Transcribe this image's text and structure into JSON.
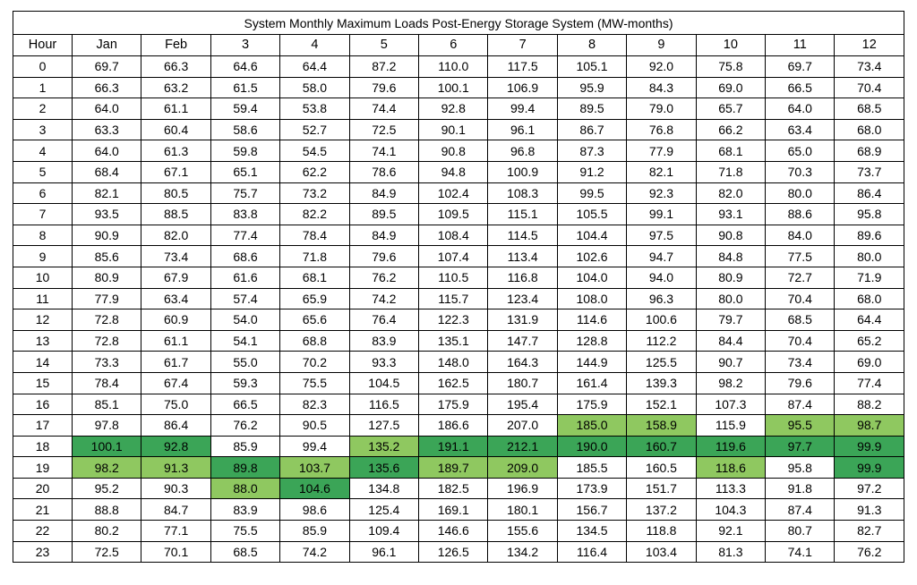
{
  "title": "System Monthly Maximum Loads Post-Energy Storage System (MW-months)",
  "colors": {
    "highlight_light": "#8fc860",
    "highlight_dark": "#3ba557",
    "border": "#000000",
    "text": "#000000",
    "background": "#ffffff"
  },
  "table": {
    "columns": [
      "Hour",
      "Jan",
      "Feb",
      "3",
      "4",
      "5",
      "6",
      "7",
      "8",
      "9",
      "10",
      "11",
      "12"
    ],
    "rows": [
      {
        "hour": "0",
        "values": [
          "69.7",
          "66.3",
          "64.6",
          "64.4",
          "87.2",
          "110.0",
          "117.5",
          "105.1",
          "92.0",
          "75.8",
          "69.7",
          "73.4"
        ]
      },
      {
        "hour": "1",
        "values": [
          "66.3",
          "63.2",
          "61.5",
          "58.0",
          "79.6",
          "100.1",
          "106.9",
          "95.9",
          "84.3",
          "69.0",
          "66.5",
          "70.4"
        ]
      },
      {
        "hour": "2",
        "values": [
          "64.0",
          "61.1",
          "59.4",
          "53.8",
          "74.4",
          "92.8",
          "99.4",
          "89.5",
          "79.0",
          "65.7",
          "64.0",
          "68.5"
        ]
      },
      {
        "hour": "3",
        "values": [
          "63.3",
          "60.4",
          "58.6",
          "52.7",
          "72.5",
          "90.1",
          "96.1",
          "86.7",
          "76.8",
          "66.2",
          "63.4",
          "68.0"
        ]
      },
      {
        "hour": "4",
        "values": [
          "64.0",
          "61.3",
          "59.8",
          "54.5",
          "74.1",
          "90.8",
          "96.8",
          "87.3",
          "77.9",
          "68.1",
          "65.0",
          "68.9"
        ]
      },
      {
        "hour": "5",
        "values": [
          "68.4",
          "67.1",
          "65.1",
          "62.2",
          "78.6",
          "94.8",
          "100.9",
          "91.2",
          "82.1",
          "71.8",
          "70.3",
          "73.7"
        ]
      },
      {
        "hour": "6",
        "values": [
          "82.1",
          "80.5",
          "75.7",
          "73.2",
          "84.9",
          "102.4",
          "108.3",
          "99.5",
          "92.3",
          "82.0",
          "80.0",
          "86.4"
        ]
      },
      {
        "hour": "7",
        "values": [
          "93.5",
          "88.5",
          "83.8",
          "82.2",
          "89.5",
          "109.5",
          "115.1",
          "105.5",
          "99.1",
          "93.1",
          "88.6",
          "95.8"
        ]
      },
      {
        "hour": "8",
        "values": [
          "90.9",
          "82.0",
          "77.4",
          "78.4",
          "84.9",
          "108.4",
          "114.5",
          "104.4",
          "97.5",
          "90.8",
          "84.0",
          "89.6"
        ]
      },
      {
        "hour": "9",
        "values": [
          "85.6",
          "73.4",
          "68.6",
          "71.8",
          "79.6",
          "107.4",
          "113.4",
          "102.6",
          "94.7",
          "84.8",
          "77.5",
          "80.0"
        ]
      },
      {
        "hour": "10",
        "values": [
          "80.9",
          "67.9",
          "61.6",
          "68.1",
          "76.2",
          "110.5",
          "116.8",
          "104.0",
          "94.0",
          "80.9",
          "72.7",
          "71.9"
        ]
      },
      {
        "hour": "11",
        "values": [
          "77.9",
          "63.4",
          "57.4",
          "65.9",
          "74.2",
          "115.7",
          "123.4",
          "108.0",
          "96.3",
          "80.0",
          "70.4",
          "68.0"
        ]
      },
      {
        "hour": "12",
        "values": [
          "72.8",
          "60.9",
          "54.0",
          "65.6",
          "76.4",
          "122.3",
          "131.9",
          "114.6",
          "100.6",
          "79.7",
          "68.5",
          "64.4"
        ]
      },
      {
        "hour": "13",
        "values": [
          "72.8",
          "61.1",
          "54.1",
          "68.8",
          "83.9",
          "135.1",
          "147.7",
          "128.8",
          "112.2",
          "84.4",
          "70.4",
          "65.2"
        ]
      },
      {
        "hour": "14",
        "values": [
          "73.3",
          "61.7",
          "55.0",
          "70.2",
          "93.3",
          "148.0",
          "164.3",
          "144.9",
          "125.5",
          "90.7",
          "73.4",
          "69.0"
        ]
      },
      {
        "hour": "15",
        "values": [
          "78.4",
          "67.4",
          "59.3",
          "75.5",
          "104.5",
          "162.5",
          "180.7",
          "161.4",
          "139.3",
          "98.2",
          "79.6",
          "77.4"
        ]
      },
      {
        "hour": "16",
        "values": [
          "85.1",
          "75.0",
          "66.5",
          "82.3",
          "116.5",
          "175.9",
          "195.4",
          "175.9",
          "152.1",
          "107.3",
          "87.4",
          "88.2"
        ]
      },
      {
        "hour": "17",
        "values": [
          "97.8",
          "86.4",
          "76.2",
          "90.5",
          "127.5",
          "186.6",
          "207.0",
          "185.0",
          "158.9",
          "115.9",
          "95.5",
          "98.7"
        ]
      },
      {
        "hour": "18",
        "values": [
          "100.1",
          "92.8",
          "85.9",
          "99.4",
          "135.2",
          "191.1",
          "212.1",
          "190.0",
          "160.7",
          "119.6",
          "97.7",
          "99.9"
        ]
      },
      {
        "hour": "19",
        "values": [
          "98.2",
          "91.3",
          "89.8",
          "103.7",
          "135.6",
          "189.7",
          "209.0",
          "185.5",
          "160.5",
          "118.6",
          "95.8",
          "99.9"
        ]
      },
      {
        "hour": "20",
        "values": [
          "95.2",
          "90.3",
          "88.0",
          "104.6",
          "134.8",
          "182.5",
          "196.9",
          "173.9",
          "151.7",
          "113.3",
          "91.8",
          "97.2"
        ]
      },
      {
        "hour": "21",
        "values": [
          "88.8",
          "84.7",
          "83.9",
          "98.6",
          "125.4",
          "169.1",
          "180.1",
          "156.7",
          "137.2",
          "104.3",
          "87.4",
          "91.3"
        ]
      },
      {
        "hour": "22",
        "values": [
          "80.2",
          "77.1",
          "75.5",
          "85.9",
          "109.4",
          "146.6",
          "155.6",
          "134.5",
          "118.8",
          "92.1",
          "80.7",
          "82.7"
        ]
      },
      {
        "hour": "23",
        "values": [
          "72.5",
          "70.1",
          "68.5",
          "74.2",
          "96.1",
          "126.5",
          "134.2",
          "116.4",
          "103.4",
          "81.3",
          "74.1",
          "76.2"
        ]
      }
    ]
  },
  "highlights": {
    "17": {
      "7": "light",
      "8": "light",
      "10": "light",
      "11": "light"
    },
    "18": {
      "0": "dark",
      "1": "dark",
      "4": "light",
      "5": "dark",
      "6": "dark",
      "7": "dark",
      "8": "dark",
      "9": "dark",
      "10": "dark",
      "11": "dark"
    },
    "19": {
      "0": "light",
      "1": "light",
      "2": "dark",
      "3": "light",
      "4": "dark",
      "5": "light",
      "6": "light",
      "9": "light",
      "11": "dark"
    },
    "20": {
      "2": "light",
      "3": "dark"
    }
  }
}
